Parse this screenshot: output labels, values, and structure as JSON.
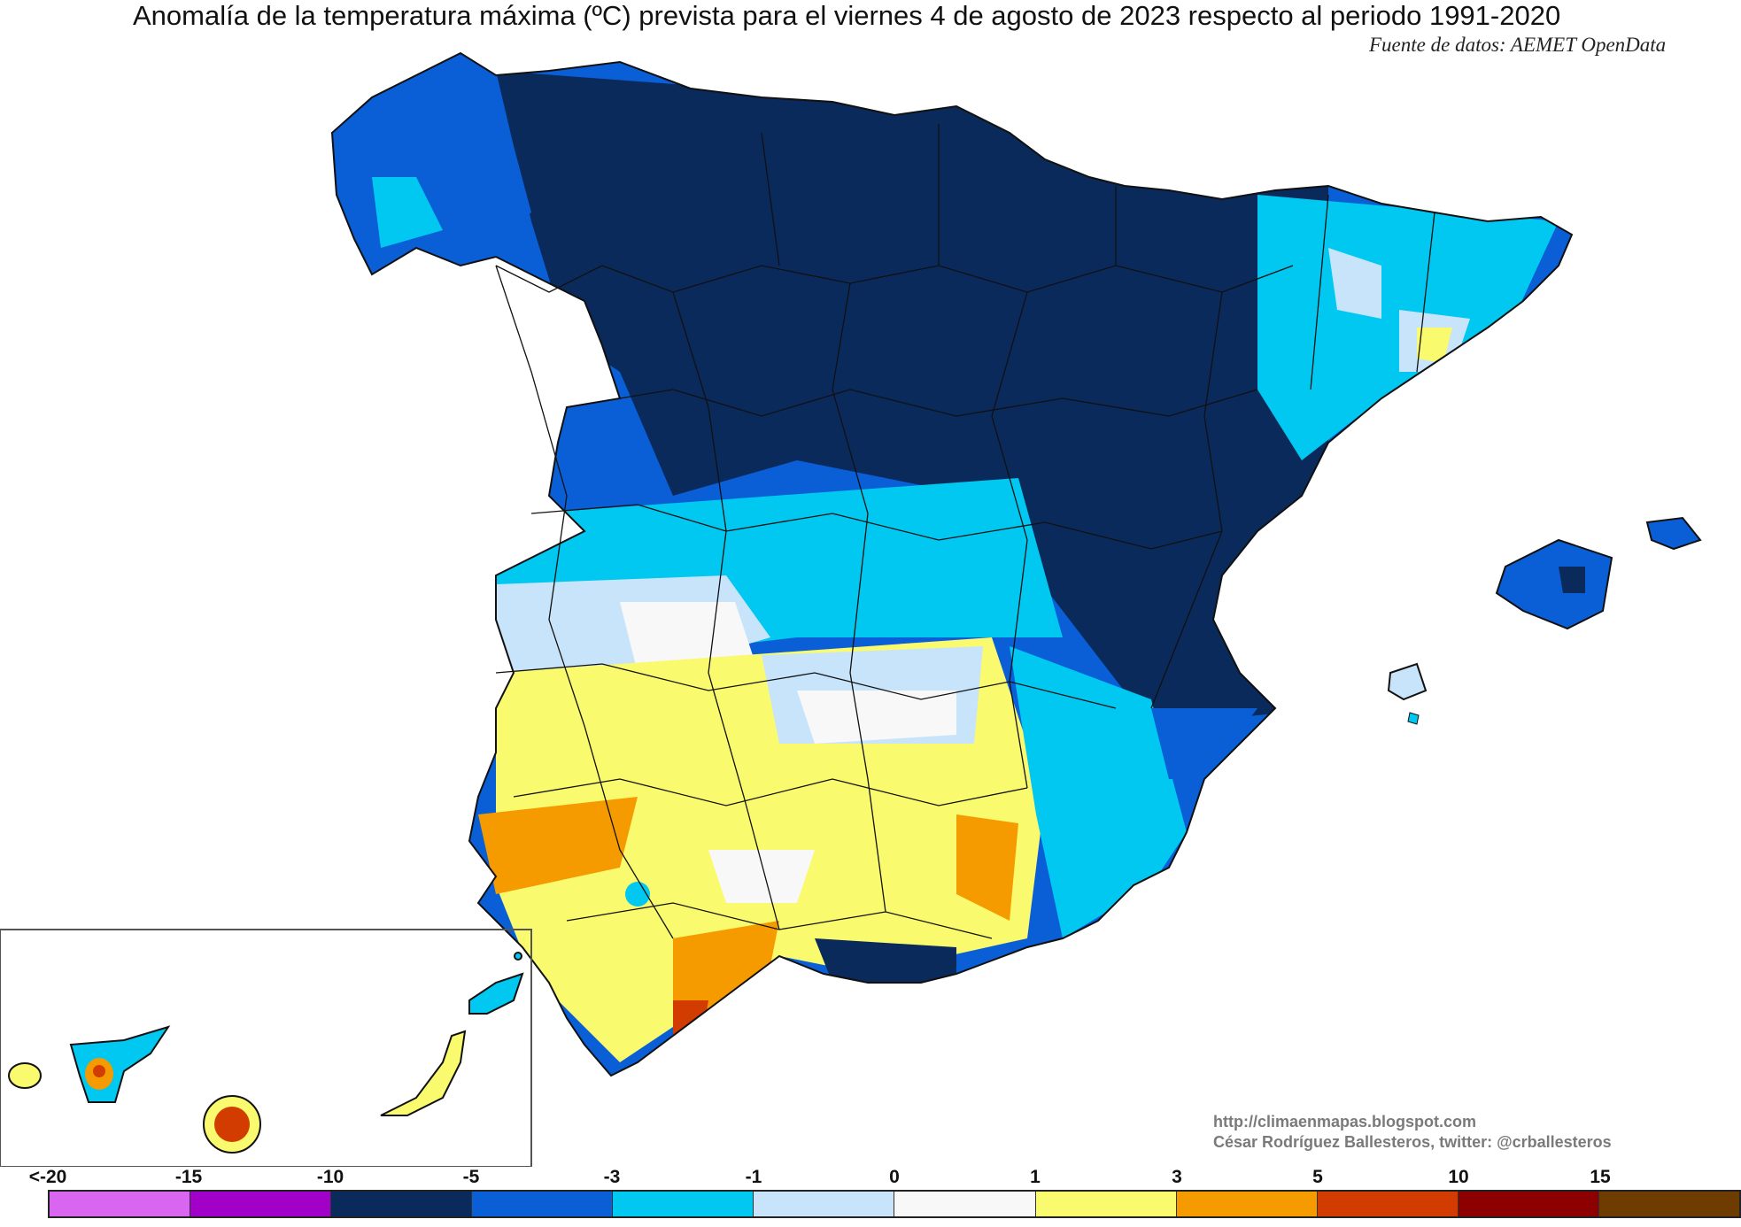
{
  "title": "Anomalía de la temperatura máxima (ºC) prevista para el viernes 4 de agosto de 2023 respecto al periodo 1991-2020",
  "source": "Fuente de datos: AEMET OpenData",
  "credits": {
    "url": "http://climaenmapas.blogspot.com",
    "author": "César Rodríguez Ballesteros, twitter: @crballesteros"
  },
  "legend": {
    "ticks": [
      "<-20",
      "-15",
      "-10",
      "-5",
      "-3",
      "-1",
      "0",
      "1",
      "3",
      "5",
      "10",
      "15"
    ],
    "colors": [
      "#d966f0",
      "#a000c8",
      "#0a2a5c",
      "#0a5ed6",
      "#00c8f0",
      "#c8e4fa",
      "#f8f8f8",
      "#fafa6e",
      "#f59b00",
      "#d23c00",
      "#8c0000",
      "#6e3c00"
    ]
  },
  "map": {
    "colors": {
      "very_cold": "#0a2a5c",
      "cold": "#0a5ed6",
      "cool": "#00c8f0",
      "slightly_cool": "#c8e4fa",
      "neutral": "#f8f8f8",
      "warm": "#fafa6e",
      "hot": "#f59b00",
      "very_hot": "#d23c00",
      "extreme": "#a000c8"
    }
  }
}
